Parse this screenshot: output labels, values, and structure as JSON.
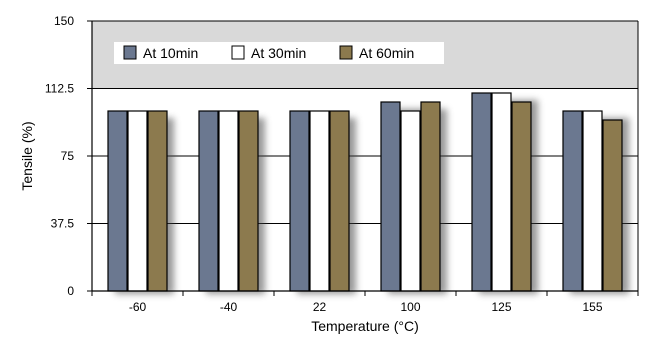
{
  "chart_data": {
    "type": "bar",
    "title": "",
    "xlabel": "Temperature (°C)",
    "ylabel": "Tensile (%)",
    "ylim": [
      0,
      150
    ],
    "yticks": [
      0,
      37.5,
      75,
      112.5,
      150
    ],
    "ytick_labels": [
      "0",
      "37.5",
      "75",
      "112.5",
      "150"
    ],
    "categories": [
      "-60",
      "-40",
      "22",
      "100",
      "125",
      "155"
    ],
    "series": [
      {
        "name": "At 10min",
        "color": "#6b7890",
        "values": [
          100,
          100,
          100,
          105,
          110,
          100
        ]
      },
      {
        "name": "At 30min",
        "color": "#ffffff",
        "values": [
          100,
          100,
          100,
          100,
          110,
          100
        ]
      },
      {
        "name": "At 60min",
        "color": "#8c7a4e",
        "values": [
          100,
          100,
          100,
          105,
          105,
          95
        ]
      }
    ],
    "grid": true,
    "legend_position": "top-left",
    "plot_background_above_112_5": "#d9d9d9"
  }
}
